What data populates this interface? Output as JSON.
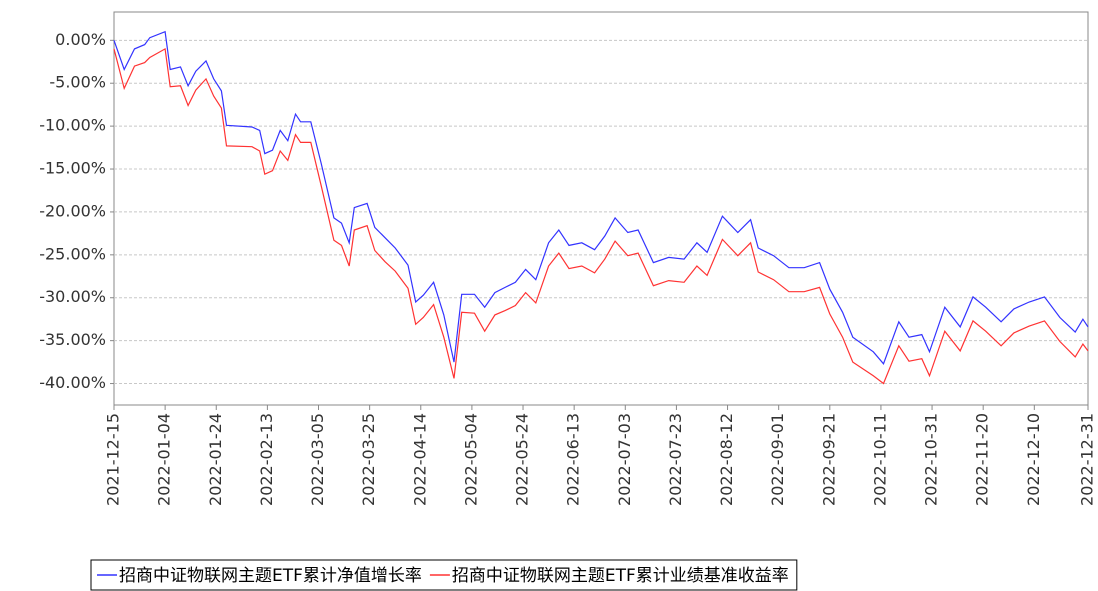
{
  "chart_data": {
    "type": "line",
    "x": [
      "2021-12-15",
      "2021-12-19",
      "2021-12-23",
      "2021-12-27",
      "2021-12-29",
      "2022-01-04",
      "2022-01-06",
      "2022-01-10",
      "2022-01-13",
      "2022-01-16",
      "2022-01-20",
      "2022-01-23",
      "2022-01-26",
      "2022-01-28",
      "2022-02-07",
      "2022-02-10",
      "2022-02-12",
      "2022-02-15",
      "2022-02-18",
      "2022-02-21",
      "2022-02-24",
      "2022-02-26",
      "2022-03-02",
      "2022-03-06",
      "2022-03-11",
      "2022-03-14",
      "2022-03-17",
      "2022-03-19",
      "2022-03-24",
      "2022-03-27",
      "2022-03-31",
      "2022-04-04",
      "2022-04-09",
      "2022-04-12",
      "2022-04-15",
      "2022-04-19",
      "2022-04-23",
      "2022-04-27",
      "2022-04-30",
      "2022-05-05",
      "2022-05-09",
      "2022-05-13",
      "2022-05-17",
      "2022-05-21",
      "2022-05-25",
      "2022-05-29",
      "2022-06-03",
      "2022-06-07",
      "2022-06-11",
      "2022-06-16",
      "2022-06-21",
      "2022-06-25",
      "2022-06-29",
      "2022-07-04",
      "2022-07-08",
      "2022-07-14",
      "2022-07-20",
      "2022-07-26",
      "2022-07-31",
      "2022-08-04",
      "2022-08-10",
      "2022-08-16",
      "2022-08-21",
      "2022-08-24",
      "2022-08-30",
      "2022-09-05",
      "2022-09-11",
      "2022-09-17",
      "2022-09-21",
      "2022-09-26",
      "2022-09-30",
      "2022-10-08",
      "2022-10-12",
      "2022-10-18",
      "2022-10-22",
      "2022-10-27",
      "2022-10-30",
      "2022-11-05",
      "2022-11-11",
      "2022-11-16",
      "2022-11-21",
      "2022-11-27",
      "2022-12-02",
      "2022-12-08",
      "2022-12-14",
      "2022-12-20",
      "2022-12-26",
      "2022-12-29",
      "2022-12-31"
    ],
    "series": [
      {
        "name": "招商中证物联网主题ETF累计净值增长率",
        "color": "#3333ff",
        "values": [
          0,
          -3.4,
          -1.0,
          -0.5,
          0.3,
          1.0,
          -3.4,
          -3.1,
          -5.3,
          -3.6,
          -2.4,
          -4.5,
          -5.9,
          -9.9,
          -10.1,
          -10.5,
          -13.2,
          -12.8,
          -10.5,
          -11.7,
          -8.6,
          -9.5,
          -9.5,
          -14.3,
          -20.7,
          -21.3,
          -23.6,
          -19.5,
          -19.0,
          -21.8,
          -23.0,
          -24.2,
          -26.2,
          -30.5,
          -29.7,
          -28.2,
          -32.0,
          -37.5,
          -29.6,
          -29.6,
          -31.1,
          -29.4,
          -28.8,
          -28.2,
          -26.7,
          -27.9,
          -23.6,
          -22.1,
          -23.9,
          -23.6,
          -24.4,
          -22.8,
          -20.7,
          -22.4,
          -22.1,
          -25.9,
          -25.3,
          -25.5,
          -23.6,
          -24.7,
          -20.5,
          -22.4,
          -20.9,
          -24.2,
          -25.1,
          -26.5,
          -26.5,
          -25.9,
          -29.0,
          -31.7,
          -34.6,
          -36.3,
          -37.7,
          -32.8,
          -34.6,
          -34.3,
          -36.3,
          -31.1,
          -33.4,
          -29.9,
          -31.1,
          -32.8,
          -31.3,
          -30.5,
          -29.9,
          -32.3,
          -34.0,
          -32.5,
          -33.4
        ]
      },
      {
        "name": "招商中证物联网主题ETF累计业绩基准收益率",
        "color": "#ff3333",
        "values": [
          -1.0,
          -5.6,
          -3.0,
          -2.6,
          -2.0,
          -1.0,
          -5.4,
          -5.3,
          -7.6,
          -5.8,
          -4.5,
          -6.5,
          -7.9,
          -12.3,
          -12.4,
          -12.9,
          -15.6,
          -15.2,
          -12.9,
          -14.0,
          -11.0,
          -11.9,
          -11.9,
          -16.9,
          -23.3,
          -23.9,
          -26.3,
          -22.1,
          -21.6,
          -24.5,
          -25.8,
          -26.9,
          -28.9,
          -33.1,
          -32.3,
          -30.8,
          -34.6,
          -39.4,
          -31.7,
          -31.8,
          -33.9,
          -32.0,
          -31.5,
          -30.9,
          -29.4,
          -30.6,
          -26.3,
          -24.8,
          -26.6,
          -26.3,
          -27.1,
          -25.5,
          -23.4,
          -25.1,
          -24.8,
          -28.6,
          -28.0,
          -28.2,
          -26.3,
          -27.4,
          -23.2,
          -25.1,
          -23.6,
          -27.0,
          -27.9,
          -29.3,
          -29.3,
          -28.8,
          -31.9,
          -34.6,
          -37.5,
          -39.1,
          -40.0,
          -35.6,
          -37.4,
          -37.1,
          -39.1,
          -33.9,
          -36.2,
          -32.7,
          -33.9,
          -35.6,
          -34.1,
          -33.3,
          -32.7,
          -35.1,
          -36.9,
          -35.4,
          -36.2
        ]
      }
    ],
    "xlim": [
      "2021-12-15",
      "2022-12-31"
    ],
    "xticks": [
      "2021-12-15",
      "2022-01-04",
      "2022-01-24",
      "2022-02-13",
      "2022-03-05",
      "2022-03-25",
      "2022-04-14",
      "2022-05-04",
      "2022-05-24",
      "2022-06-13",
      "2022-07-03",
      "2022-07-23",
      "2022-08-12",
      "2022-09-01",
      "2022-09-21",
      "2022-10-11",
      "2022-10-31",
      "2022-11-20",
      "2022-12-10",
      "2022-12-31"
    ],
    "ylim": [
      -42.5,
      3.3
    ],
    "yticks": [
      {
        "value": 0,
        "label": "0.00%"
      },
      {
        "value": -5,
        "label": "-5.00%"
      },
      {
        "value": -10,
        "label": "-10.00%"
      },
      {
        "value": -15,
        "label": "-15.00%"
      },
      {
        "value": -20,
        "label": "-20.00%"
      },
      {
        "value": -25,
        "label": "-25.00%"
      },
      {
        "value": -30,
        "label": "-30.00%"
      },
      {
        "value": -35,
        "label": "-35.00%"
      },
      {
        "value": -40,
        "label": "-40.00%"
      }
    ],
    "grid": true,
    "legend": "bottom"
  }
}
